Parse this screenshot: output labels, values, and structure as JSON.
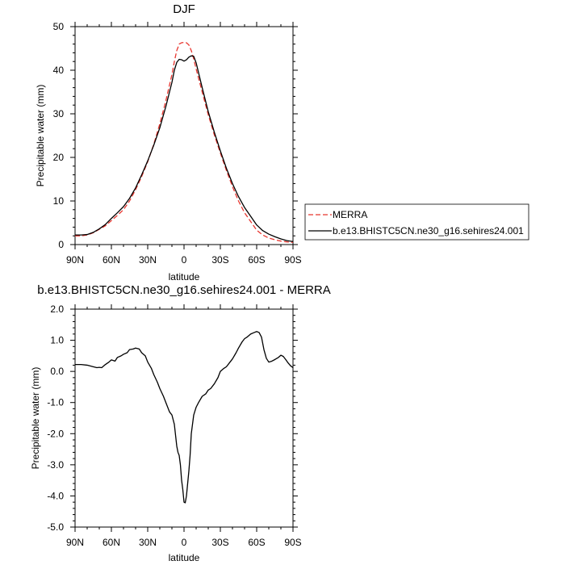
{
  "chart_data": [
    {
      "type": "line",
      "title": "DJF",
      "xlabel": "latitude",
      "ylabel": "Precipitable water (mm)",
      "x_tick_labels": [
        "90N",
        "60N",
        "30N",
        "0",
        "30S",
        "60S",
        "90S"
      ],
      "x_tick_values": [
        90,
        60,
        30,
        0,
        -30,
        -60,
        -90
      ],
      "xlim": [
        90,
        -90
      ],
      "ylim": [
        0,
        50
      ],
      "y_ticks": [
        0,
        10,
        20,
        30,
        40,
        50
      ],
      "y_tick_labels": [
        "0",
        "10",
        "20",
        "30",
        "40",
        "50"
      ],
      "grid": false,
      "legend_position": "right",
      "legend_items": [
        "MERRA",
        "b.e13.BHISTC5CN.ne30_g16.sehires24.001"
      ],
      "series": [
        {
          "name": "MERRA",
          "color": "#e8362f",
          "dash": "dashed",
          "x": [
            90,
            85,
            80,
            75,
            70,
            65,
            60,
            55,
            50,
            45,
            40,
            35,
            30,
            25,
            20,
            15,
            10,
            8,
            6,
            4,
            2,
            0,
            -2,
            -4,
            -6,
            -8,
            -10,
            -15,
            -20,
            -25,
            -30,
            -35,
            -40,
            -45,
            -50,
            -55,
            -60,
            -65,
            -70,
            -75,
            -80,
            -85,
            -90
          ],
          "y": [
            2.0,
            2.0,
            2.2,
            2.7,
            3.5,
            4.3,
            5.5,
            6.7,
            8.0,
            10.0,
            12.6,
            15.6,
            19.0,
            23.0,
            27.7,
            33.0,
            39.0,
            42.0,
            44.5,
            46.0,
            46.3,
            46.4,
            46.3,
            45.8,
            44.5,
            42.6,
            40.3,
            35.0,
            29.8,
            25.2,
            21.0,
            17.0,
            13.3,
            10.0,
            7.3,
            5.3,
            3.3,
            2.2,
            1.5,
            1.1,
            0.8,
            0.6,
            0.5
          ]
        },
        {
          "name": "b.e13.BHISTC5CN.ne30_g16.sehires24.001",
          "color": "#000000",
          "dash": "solid",
          "x": [
            90,
            85,
            80,
            75,
            70,
            65,
            60,
            55,
            50,
            45,
            40,
            35,
            30,
            25,
            20,
            15,
            10,
            8,
            6,
            4,
            2,
            0,
            -2,
            -4,
            -6,
            -8,
            -10,
            -15,
            -20,
            -25,
            -30,
            -35,
            -40,
            -45,
            -50,
            -55,
            -60,
            -65,
            -70,
            -75,
            -80,
            -85,
            -90
          ],
          "y": [
            2.2,
            2.2,
            2.3,
            2.8,
            3.6,
            4.6,
            6.0,
            7.3,
            8.7,
            10.6,
            13.0,
            16.0,
            19.2,
            22.8,
            26.8,
            31.7,
            37.2,
            40.0,
            41.8,
            42.5,
            42.4,
            42.1,
            42.4,
            43.0,
            43.3,
            43.2,
            41.7,
            36.0,
            30.5,
            25.8,
            21.5,
            17.5,
            14.0,
            11.0,
            8.5,
            6.5,
            4.5,
            3.2,
            2.4,
            1.8,
            1.3,
            0.9,
            0.7
          ]
        }
      ]
    },
    {
      "type": "line",
      "title": "b.e13.BHISTC5CN.ne30_g16.sehires24.001 - MERRA",
      "xlabel": "latitude",
      "ylabel": "Precipitable water (mm)",
      "x_tick_labels": [
        "90N",
        "60N",
        "30N",
        "0",
        "30S",
        "60S",
        "90S"
      ],
      "x_tick_values": [
        90,
        60,
        30,
        0,
        -30,
        -60,
        -90
      ],
      "xlim": [
        90,
        -90
      ],
      "ylim": [
        -5,
        2
      ],
      "y_ticks": [
        -5,
        -4,
        -3,
        -2,
        -1,
        0,
        1,
        2
      ],
      "y_tick_labels": [
        "-5.0",
        "-4.0",
        "-3.0",
        "-2.0",
        "-1.0",
        "0.0",
        "1.0",
        "2.0"
      ],
      "grid": false,
      "series": [
        {
          "color": "#000000",
          "dash": "solid",
          "x": [
            90,
            85,
            80,
            75,
            72,
            70,
            68,
            65,
            62,
            60,
            57,
            55,
            52,
            50,
            47,
            45,
            42,
            40,
            37,
            35,
            32,
            30,
            27,
            25,
            22,
            20,
            17,
            15,
            12,
            10,
            8,
            6,
            5,
            4,
            3,
            2,
            1,
            0,
            -1,
            -2,
            -3,
            -4,
            -5,
            -6,
            -8,
            -10,
            -12,
            -15,
            -18,
            -20,
            -22,
            -25,
            -28,
            -30,
            -33,
            -35,
            -38,
            -40,
            -43,
            -45,
            -48,
            -50,
            -52,
            -55,
            -58,
            -60,
            -62,
            -64,
            -66,
            -68,
            -70,
            -72,
            -75,
            -78,
            -80,
            -82,
            -84,
            -86,
            -88,
            -90
          ],
          "y": [
            0.22,
            0.22,
            0.2,
            0.15,
            0.12,
            0.13,
            0.12,
            0.22,
            0.3,
            0.37,
            0.33,
            0.45,
            0.5,
            0.55,
            0.6,
            0.7,
            0.72,
            0.75,
            0.72,
            0.6,
            0.5,
            0.3,
            0.1,
            -0.1,
            -0.35,
            -0.55,
            -0.8,
            -1.0,
            -1.3,
            -1.4,
            -1.7,
            -2.4,
            -2.6,
            -2.7,
            -3.0,
            -3.5,
            -3.8,
            -4.2,
            -4.22,
            -4.0,
            -3.6,
            -3.2,
            -2.7,
            -2.0,
            -1.4,
            -1.15,
            -1.0,
            -0.8,
            -0.72,
            -0.6,
            -0.55,
            -0.4,
            -0.2,
            0.0,
            0.1,
            0.15,
            0.3,
            0.4,
            0.6,
            0.75,
            0.95,
            1.05,
            1.1,
            1.2,
            1.25,
            1.28,
            1.25,
            1.1,
            0.7,
            0.42,
            0.3,
            0.32,
            0.38,
            0.45,
            0.52,
            0.48,
            0.38,
            0.27,
            0.18,
            0.12
          ]
        }
      ]
    }
  ]
}
